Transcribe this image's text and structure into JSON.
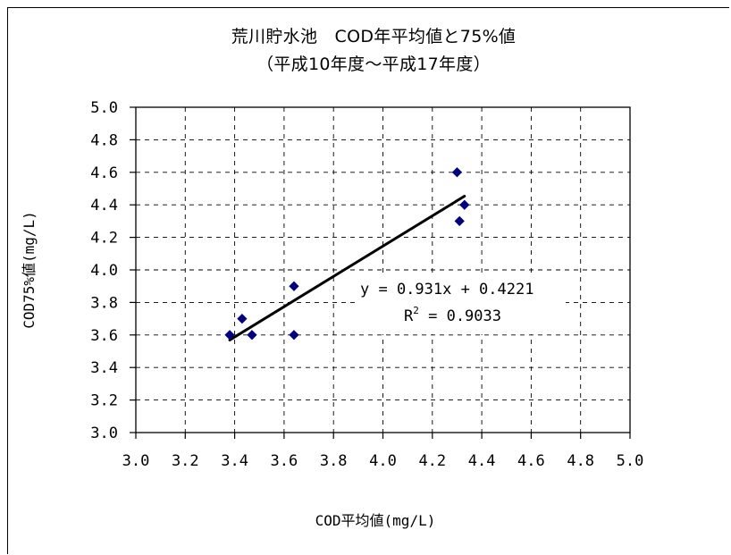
{
  "chart_data": {
    "type": "scatter",
    "title": "荒川貯水池　COD年平均値と75%値",
    "subtitle": "（平成10年度～平成17年度）",
    "xlabel": "COD平均値(mg/L)",
    "ylabel": "COD75%値(mg/L)",
    "xlim": [
      3.0,
      5.0
    ],
    "ylim": [
      3.0,
      5.0
    ],
    "xticks": [
      "3.0",
      "3.2",
      "3.4",
      "3.6",
      "3.8",
      "4.0",
      "4.2",
      "4.4",
      "4.6",
      "4.8",
      "5.0"
    ],
    "yticks": [
      "3.0",
      "3.2",
      "3.4",
      "3.6",
      "3.8",
      "4.0",
      "4.2",
      "4.4",
      "4.6",
      "4.8",
      "5.0"
    ],
    "grid": true,
    "legend": "none",
    "points": [
      {
        "x": 3.38,
        "y": 3.6
      },
      {
        "x": 3.43,
        "y": 3.7
      },
      {
        "x": 3.47,
        "y": 3.6
      },
      {
        "x": 3.64,
        "y": 3.9
      },
      {
        "x": 3.64,
        "y": 3.6
      },
      {
        "x": 4.3,
        "y": 4.6
      },
      {
        "x": 4.33,
        "y": 4.4
      },
      {
        "x": 4.31,
        "y": 4.3
      }
    ],
    "trendline": {
      "slope": 0.931,
      "intercept": 0.4221,
      "x_start": 3.38,
      "x_end": 4.33
    },
    "equation": "y = 0.931x + 0.4221",
    "r_squared": {
      "prefix": "R",
      "superscript": "2",
      "value": " = 0.9033"
    },
    "colors": {
      "marker": "#000080",
      "trendline": "#000000",
      "grid": "#000000",
      "axis": "#000000"
    },
    "marker_shape": "diamond-icon"
  }
}
